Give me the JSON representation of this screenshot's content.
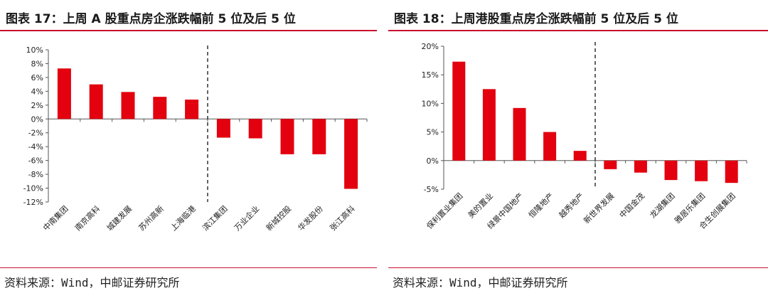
{
  "left": {
    "title": "图表 17：上周 A 股重点房企涨跌幅前 5 位及后 5 位",
    "source": "资料来源：Wind，中邮证券研究所"
  },
  "right": {
    "title": "图表 18：上周港股重点房企涨跌幅前 5 位及后 5 位",
    "source": "资料来源：Wind，中邮证券研究所"
  },
  "colors": {
    "bar": "#e3000f",
    "accent": "#c8102e"
  },
  "chart_data": [
    {
      "type": "bar",
      "title": "",
      "xlabel": "",
      "ylabel": "",
      "categories": [
        "中南集团",
        "南京高科",
        "城建发展",
        "苏州高新",
        "上海临港",
        "滨江集团",
        "万业企业",
        "新城控股",
        "华发股份",
        "张江高科"
      ],
      "values": [
        7.3,
        5.0,
        3.9,
        3.2,
        2.8,
        -2.7,
        -2.8,
        -5.1,
        -5.1,
        -10.1
      ],
      "ylim": [
        -12,
        10
      ],
      "yticks": [
        10,
        8,
        6,
        4,
        2,
        0,
        -2,
        -4,
        -6,
        -8,
        -10,
        -12
      ],
      "ytick_labels": [
        "10%",
        "8%",
        "6%",
        "4%",
        "2%",
        "0%",
        "-2%",
        "-4%",
        "-6%",
        "-8%",
        "-10%",
        "-12%"
      ],
      "divider_after_index": 4,
      "grid": false,
      "legend": "none"
    },
    {
      "type": "bar",
      "title": "",
      "xlabel": "",
      "ylabel": "",
      "categories": [
        "保利置业集团",
        "美的置业",
        "绿景中国地产",
        "恒隆地产",
        "越秀地产",
        "新世界发展",
        "中国金茂",
        "龙湖集团",
        "雅居乐集团",
        "合生创展集团"
      ],
      "values": [
        17.3,
        12.5,
        9.2,
        5.0,
        1.7,
        -1.5,
        -2.1,
        -3.4,
        -3.6,
        -3.9
      ],
      "ylim": [
        -5,
        20
      ],
      "yticks": [
        20,
        15,
        10,
        5,
        0,
        -5
      ],
      "ytick_labels": [
        "20%",
        "15%",
        "10%",
        "5%",
        "0%",
        "-5%"
      ],
      "divider_after_index": 4,
      "grid": false,
      "legend": "none"
    }
  ]
}
